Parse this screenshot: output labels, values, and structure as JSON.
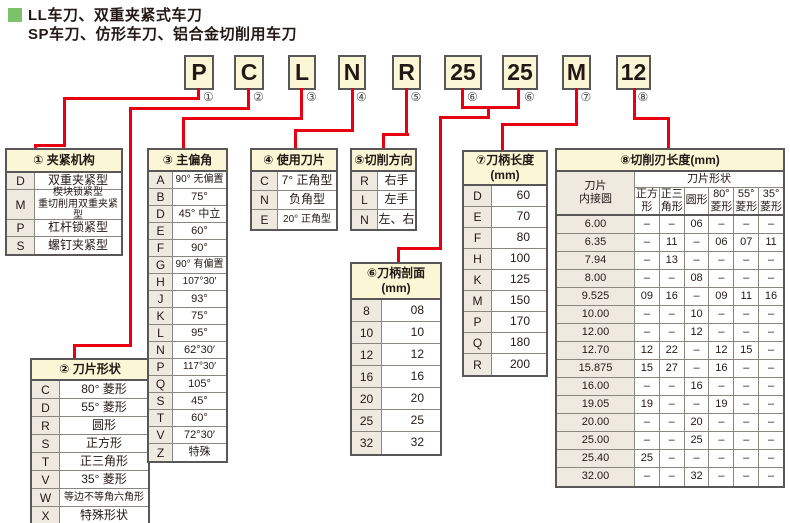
{
  "title": {
    "line1": "LL车刀、双重夹紧式车刀",
    "line2": "SP车刀、仿形车刀、铝合金切削用车刀"
  },
  "colors": {
    "accent_red": "#e60012",
    "header_cream": "#fbf6d5",
    "code_beige": "#eeeae0",
    "border_gray": "#595757",
    "bullet_green": "#7cc269"
  },
  "code_boxes": [
    {
      "char": "P",
      "num": "①"
    },
    {
      "char": "C",
      "num": "②"
    },
    {
      "char": "L",
      "num": "③"
    },
    {
      "char": "N",
      "num": "④"
    },
    {
      "char": "R",
      "num": "⑤"
    },
    {
      "char": "25",
      "num": "⑥"
    },
    {
      "char": "25",
      "num": "⑥"
    },
    {
      "char": "M",
      "num": "⑦"
    },
    {
      "char": "12",
      "num": "⑧"
    }
  ],
  "tables": {
    "t1": {
      "title": "① 夹紧机构",
      "rows": [
        [
          "D",
          "双重夹紧型"
        ],
        [
          "M",
          "楔块锁紧型\n重切削用双重夹紧型"
        ],
        [
          "P",
          "杠杆锁紧型"
        ],
        [
          "S",
          "螺钉夹紧型"
        ]
      ]
    },
    "t2": {
      "title": "② 刀片形状",
      "rows": [
        [
          "C",
          "80° 菱形"
        ],
        [
          "D",
          "55° 菱形"
        ],
        [
          "R",
          "圆形"
        ],
        [
          "S",
          "正方形"
        ],
        [
          "T",
          "正三角形"
        ],
        [
          "V",
          "35° 菱形"
        ],
        [
          "W",
          "等边不等角六角形"
        ],
        [
          "X",
          "特殊形状"
        ]
      ]
    },
    "t3": {
      "title": "③ 主偏角",
      "rows": [
        [
          "A",
          "90° 无偏置"
        ],
        [
          "B",
          "75°"
        ],
        [
          "D",
          "45° 中立"
        ],
        [
          "E",
          "60°"
        ],
        [
          "F",
          "90°"
        ],
        [
          "G",
          "90° 有偏置"
        ],
        [
          "H",
          "107°30′"
        ],
        [
          "J",
          "93°"
        ],
        [
          "K",
          "75°"
        ],
        [
          "L",
          "95°"
        ],
        [
          "N",
          "62°30′"
        ],
        [
          "P",
          "117°30′"
        ],
        [
          "Q",
          "105°"
        ],
        [
          "S",
          "45°"
        ],
        [
          "T",
          "60°"
        ],
        [
          "V",
          "72°30′"
        ],
        [
          "Z",
          "特殊"
        ]
      ]
    },
    "t4": {
      "title": "④ 使用刀片",
      "rows": [
        [
          "C",
          "7° 正角型"
        ],
        [
          "N",
          "负角型"
        ],
        [
          "E",
          "20° 正角型"
        ]
      ]
    },
    "t5": {
      "title": "⑤切削方向",
      "rows": [
        [
          "R",
          "右手"
        ],
        [
          "L",
          "左手"
        ],
        [
          "N",
          "左、右"
        ]
      ]
    },
    "t6": {
      "title": "⑥刀柄剖面\n(mm)",
      "rows": [
        [
          "8",
          "08"
        ],
        [
          "10",
          "10"
        ],
        [
          "12",
          "12"
        ],
        [
          "16",
          "16"
        ],
        [
          "20",
          "20"
        ],
        [
          "25",
          "25"
        ],
        [
          "32",
          "32"
        ]
      ]
    },
    "t7": {
      "title": "⑦刀柄长度\n(mm)",
      "rows": [
        [
          "D",
          "60"
        ],
        [
          "E",
          "70"
        ],
        [
          "F",
          "80"
        ],
        [
          "H",
          "100"
        ],
        [
          "K",
          "125"
        ],
        [
          "M",
          "150"
        ],
        [
          "P",
          "170"
        ],
        [
          "Q",
          "180"
        ],
        [
          "R",
          "200"
        ]
      ]
    },
    "t8": {
      "title": "⑧切削刃长度(mm)",
      "corner": "刀片\n内接圆",
      "group": "刀片形状",
      "cols": [
        "正方\n形",
        "正三\n角形",
        "圆形",
        "80°\n菱形",
        "55°\n菱形",
        "35°\n菱形"
      ],
      "rows": [
        [
          "6.00",
          "–",
          "–",
          "06",
          "–",
          "–",
          "–"
        ],
        [
          "6.35",
          "–",
          "11",
          "–",
          "06",
          "07",
          "11"
        ],
        [
          "7.94",
          "–",
          "13",
          "–",
          "–",
          "–",
          "–"
        ],
        [
          "8.00",
          "–",
          "–",
          "08",
          "–",
          "–",
          "–"
        ],
        [
          "9.525",
          "09",
          "16",
          "–",
          "09",
          "11",
          "16"
        ],
        [
          "10.00",
          "–",
          "–",
          "10",
          "–",
          "–",
          "–"
        ],
        [
          "12.00",
          "–",
          "–",
          "12",
          "–",
          "–",
          "–"
        ],
        [
          "12.70",
          "12",
          "22",
          "–",
          "12",
          "15",
          "–"
        ],
        [
          "15.875",
          "15",
          "27",
          "–",
          "16",
          "–",
          "–"
        ],
        [
          "16.00",
          "–",
          "–",
          "16",
          "–",
          "–",
          "–"
        ],
        [
          "19.05",
          "19",
          "–",
          "–",
          "19",
          "–",
          "–"
        ],
        [
          "20.00",
          "–",
          "–",
          "20",
          "–",
          "–",
          "–"
        ],
        [
          "25.00",
          "–",
          "–",
          "25",
          "–",
          "–",
          "–"
        ],
        [
          "25.40",
          "25",
          "–",
          "–",
          "–",
          "–",
          "–"
        ],
        [
          "32.00",
          "–",
          "–",
          "32",
          "–",
          "–",
          "–"
        ]
      ]
    }
  }
}
